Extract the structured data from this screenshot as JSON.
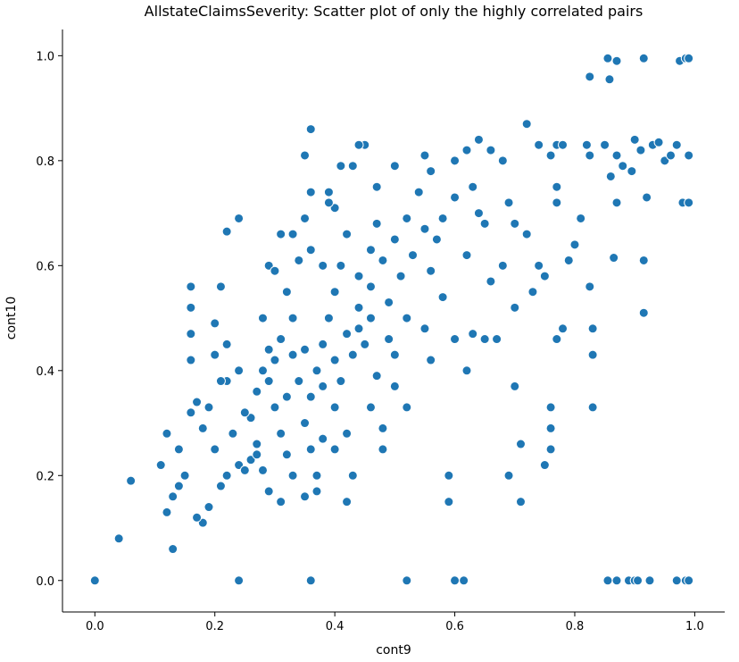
{
  "chart_data": {
    "type": "scatter",
    "title": "AllstateClaimsSeverity: Scatter plot of only the highly correlated pairs",
    "x_label": "cont9",
    "y_label": "cont10",
    "color": "#1f77b4",
    "xlim": [
      -0.054,
      1.05
    ],
    "ylim": [
      -0.06,
      1.05
    ],
    "xticks": [
      {
        "value": 0,
        "label": "0.0"
      },
      0.2,
      0.4,
      0.6,
      0.8,
      {
        "value": 1,
        "label": "1.0"
      }
    ],
    "yticks": [
      {
        "value": 0,
        "label": "0.0"
      },
      0.2,
      0.4,
      0.6,
      0.8,
      {
        "value": 1,
        "label": "1.0"
      }
    ],
    "x": [
      0,
      0.04,
      0.06,
      0.13,
      0.24,
      0.36,
      0.52,
      0.6,
      0.615,
      0.855,
      0.87,
      0.89,
      0.9,
      0.905,
      0.925,
      0.97,
      0.985,
      0.99,
      0.855,
      0.87,
      0.915,
      0.975,
      0.985,
      0.99,
      0.825,
      0.858,
      0.82,
      0.85,
      0.87,
      0.88,
      0.9,
      0.91,
      0.93,
      0.95,
      0.97,
      0.99,
      0.825,
      0.86,
      0.895,
      0.94,
      0.96,
      0.98,
      0.99,
      0.92,
      0.87,
      0.915,
      0.915,
      0.865,
      0.83,
      0.83,
      0.83,
      0.825,
      0.81,
      0.76,
      0.77,
      0.78,
      0.74,
      0.72,
      0.77,
      0.77,
      0.79,
      0.8,
      0.78,
      0.77,
      0.76,
      0.76,
      0.76,
      0.75,
      0.71,
      0.71,
      0.69,
      0.7,
      0.7,
      0.73,
      0.74,
      0.75,
      0.72,
      0.7,
      0.69,
      0.68,
      0.66,
      0.64,
      0.62,
      0.6,
      0.62,
      0.62,
      0.59,
      0.59,
      0.6,
      0.63,
      0.65,
      0.67,
      0.66,
      0.68,
      0.65,
      0.64,
      0.63,
      0.6,
      0.58,
      0.57,
      0.56,
      0.58,
      0.55,
      0.56,
      0.52,
      0.5,
      0.5,
      0.48,
      0.48,
      0.46,
      0.47,
      0.45,
      0.44,
      0.46,
      0.48,
      0.5,
      0.52,
      0.54,
      0.56,
      0.55,
      0.5,
      0.47,
      0.45,
      0.44,
      0.43,
      0.41,
      0.4,
      0.42,
      0.41,
      0.4,
      0.39,
      0.38,
      0.37,
      0.36,
      0.35,
      0.36,
      0.37,
      0.37,
      0.35,
      0.42,
      0.43,
      0.42,
      0.4,
      0.41,
      0.43,
      0.42,
      0.44,
      0.46,
      0.47,
      0.38,
      0.36,
      0.35,
      0.36,
      0.35,
      0.36,
      0.39,
      0.39,
      0.33,
      0.34,
      0.32,
      0.33,
      0.31,
      0.3,
      0.29,
      0.3,
      0.31,
      0.32,
      0.33,
      0.31,
      0.29,
      0.28,
      0.27,
      0.26,
      0.27,
      0.28,
      0.29,
      0.28,
      0.29,
      0.3,
      0.31,
      0.24,
      0.22,
      0.21,
      0.2,
      0.22,
      0.24,
      0.22,
      0.25,
      0.23,
      0.24,
      0.22,
      0.21,
      0.19,
      0.18,
      0.17,
      0.2,
      0.18,
      0.19,
      0.17,
      0.16,
      0.16,
      0.16,
      0.16,
      0.16,
      0.2,
      0.21,
      0.14,
      0.12,
      0.11,
      0.12,
      0.13,
      0.14,
      0.15,
      0.26,
      0.25,
      0.27,
      0.38,
      0.4,
      0.34,
      0.33,
      0.44,
      0.46,
      0.49,
      0.51,
      0.53,
      0.55,
      0.49,
      0.52,
      0.38,
      0.4,
      0.35,
      0.32
    ],
    "values": [
      0,
      0.08,
      0.19,
      0.06,
      0,
      0,
      0,
      0,
      0,
      0,
      0,
      0,
      0,
      0,
      0,
      0,
      0,
      0,
      0.995,
      0.99,
      0.995,
      0.99,
      0.995,
      0.995,
      0.96,
      0.955,
      0.83,
      0.83,
      0.81,
      0.79,
      0.84,
      0.82,
      0.83,
      0.8,
      0.83,
      0.81,
      0.81,
      0.77,
      0.78,
      0.835,
      0.81,
      0.72,
      0.72,
      0.73,
      0.72,
      0.61,
      0.51,
      0.615,
      0.33,
      0.43,
      0.48,
      0.56,
      0.69,
      0.81,
      0.83,
      0.83,
      0.83,
      0.87,
      0.75,
      0.72,
      0.61,
      0.64,
      0.48,
      0.46,
      0.33,
      0.29,
      0.25,
      0.22,
      0.15,
      0.26,
      0.2,
      0.37,
      0.52,
      0.55,
      0.6,
      0.58,
      0.66,
      0.68,
      0.72,
      0.8,
      0.82,
      0.84,
      0.82,
      0.8,
      0.62,
      0.4,
      0.15,
      0.2,
      0.46,
      0.47,
      0.46,
      0.46,
      0.57,
      0.6,
      0.68,
      0.7,
      0.75,
      0.73,
      0.69,
      0.65,
      0.59,
      0.54,
      0.48,
      0.42,
      0.33,
      0.37,
      0.43,
      0.25,
      0.29,
      0.33,
      0.39,
      0.45,
      0.52,
      0.56,
      0.61,
      0.65,
      0.69,
      0.74,
      0.78,
      0.81,
      0.79,
      0.75,
      0.83,
      0.83,
      0.79,
      0.79,
      0.71,
      0.66,
      0.6,
      0.55,
      0.5,
      0.45,
      0.4,
      0.35,
      0.3,
      0.25,
      0.2,
      0.17,
      0.16,
      0.15,
      0.2,
      0.28,
      0.33,
      0.38,
      0.43,
      0.47,
      0.58,
      0.63,
      0.68,
      0.6,
      0.63,
      0.69,
      0.74,
      0.81,
      0.86,
      0.72,
      0.74,
      0.66,
      0.61,
      0.55,
      0.5,
      0.46,
      0.42,
      0.38,
      0.33,
      0.28,
      0.24,
      0.2,
      0.15,
      0.17,
      0.21,
      0.26,
      0.31,
      0.36,
      0.4,
      0.44,
      0.5,
      0.6,
      0.59,
      0.66,
      0.69,
      0.665,
      0.56,
      0.49,
      0.45,
      0.4,
      0.38,
      0.32,
      0.28,
      0.22,
      0.2,
      0.18,
      0.14,
      0.11,
      0.12,
      0.25,
      0.29,
      0.33,
      0.34,
      0.32,
      0.42,
      0.47,
      0.52,
      0.56,
      0.43,
      0.38,
      0.25,
      0.28,
      0.22,
      0.13,
      0.16,
      0.18,
      0.2,
      0.23,
      0.21,
      0.24,
      0.37,
      0.42,
      0.38,
      0.43,
      0.48,
      0.5,
      0.53,
      0.58,
      0.62,
      0.67,
      0.46,
      0.5,
      0.27,
      0.25,
      0.44,
      0.35
    ]
  }
}
